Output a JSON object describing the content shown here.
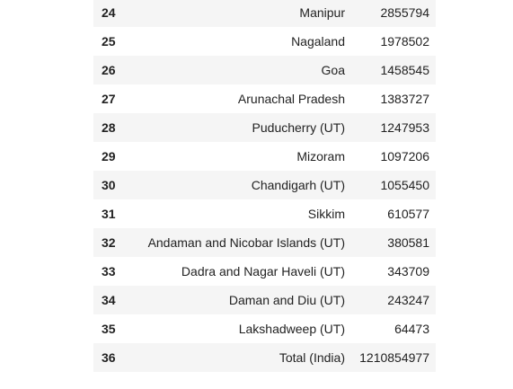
{
  "table": {
    "rows": [
      {
        "index": "24",
        "state": "Manipur",
        "population": "2855794"
      },
      {
        "index": "25",
        "state": "Nagaland",
        "population": "1978502"
      },
      {
        "index": "26",
        "state": "Goa",
        "population": "1458545"
      },
      {
        "index": "27",
        "state": "Arunachal Pradesh",
        "population": "1383727"
      },
      {
        "index": "28",
        "state": "Puducherry (UT)",
        "population": "1247953"
      },
      {
        "index": "29",
        "state": "Mizoram",
        "population": "1097206"
      },
      {
        "index": "30",
        "state": "Chandigarh (UT)",
        "population": "1055450"
      },
      {
        "index": "31",
        "state": "Sikkim",
        "population": "610577"
      },
      {
        "index": "32",
        "state": "Andaman and Nicobar Islands (UT)",
        "population": "380581"
      },
      {
        "index": "33",
        "state": "Dadra and Nagar Haveli (UT)",
        "population": "343709"
      },
      {
        "index": "34",
        "state": "Daman and Diu (UT)",
        "population": "243247"
      },
      {
        "index": "35",
        "state": "Lakshadweep (UT)",
        "population": "64473"
      },
      {
        "index": "36",
        "state": "Total (India)",
        "population": "1210854977"
      }
    ]
  }
}
